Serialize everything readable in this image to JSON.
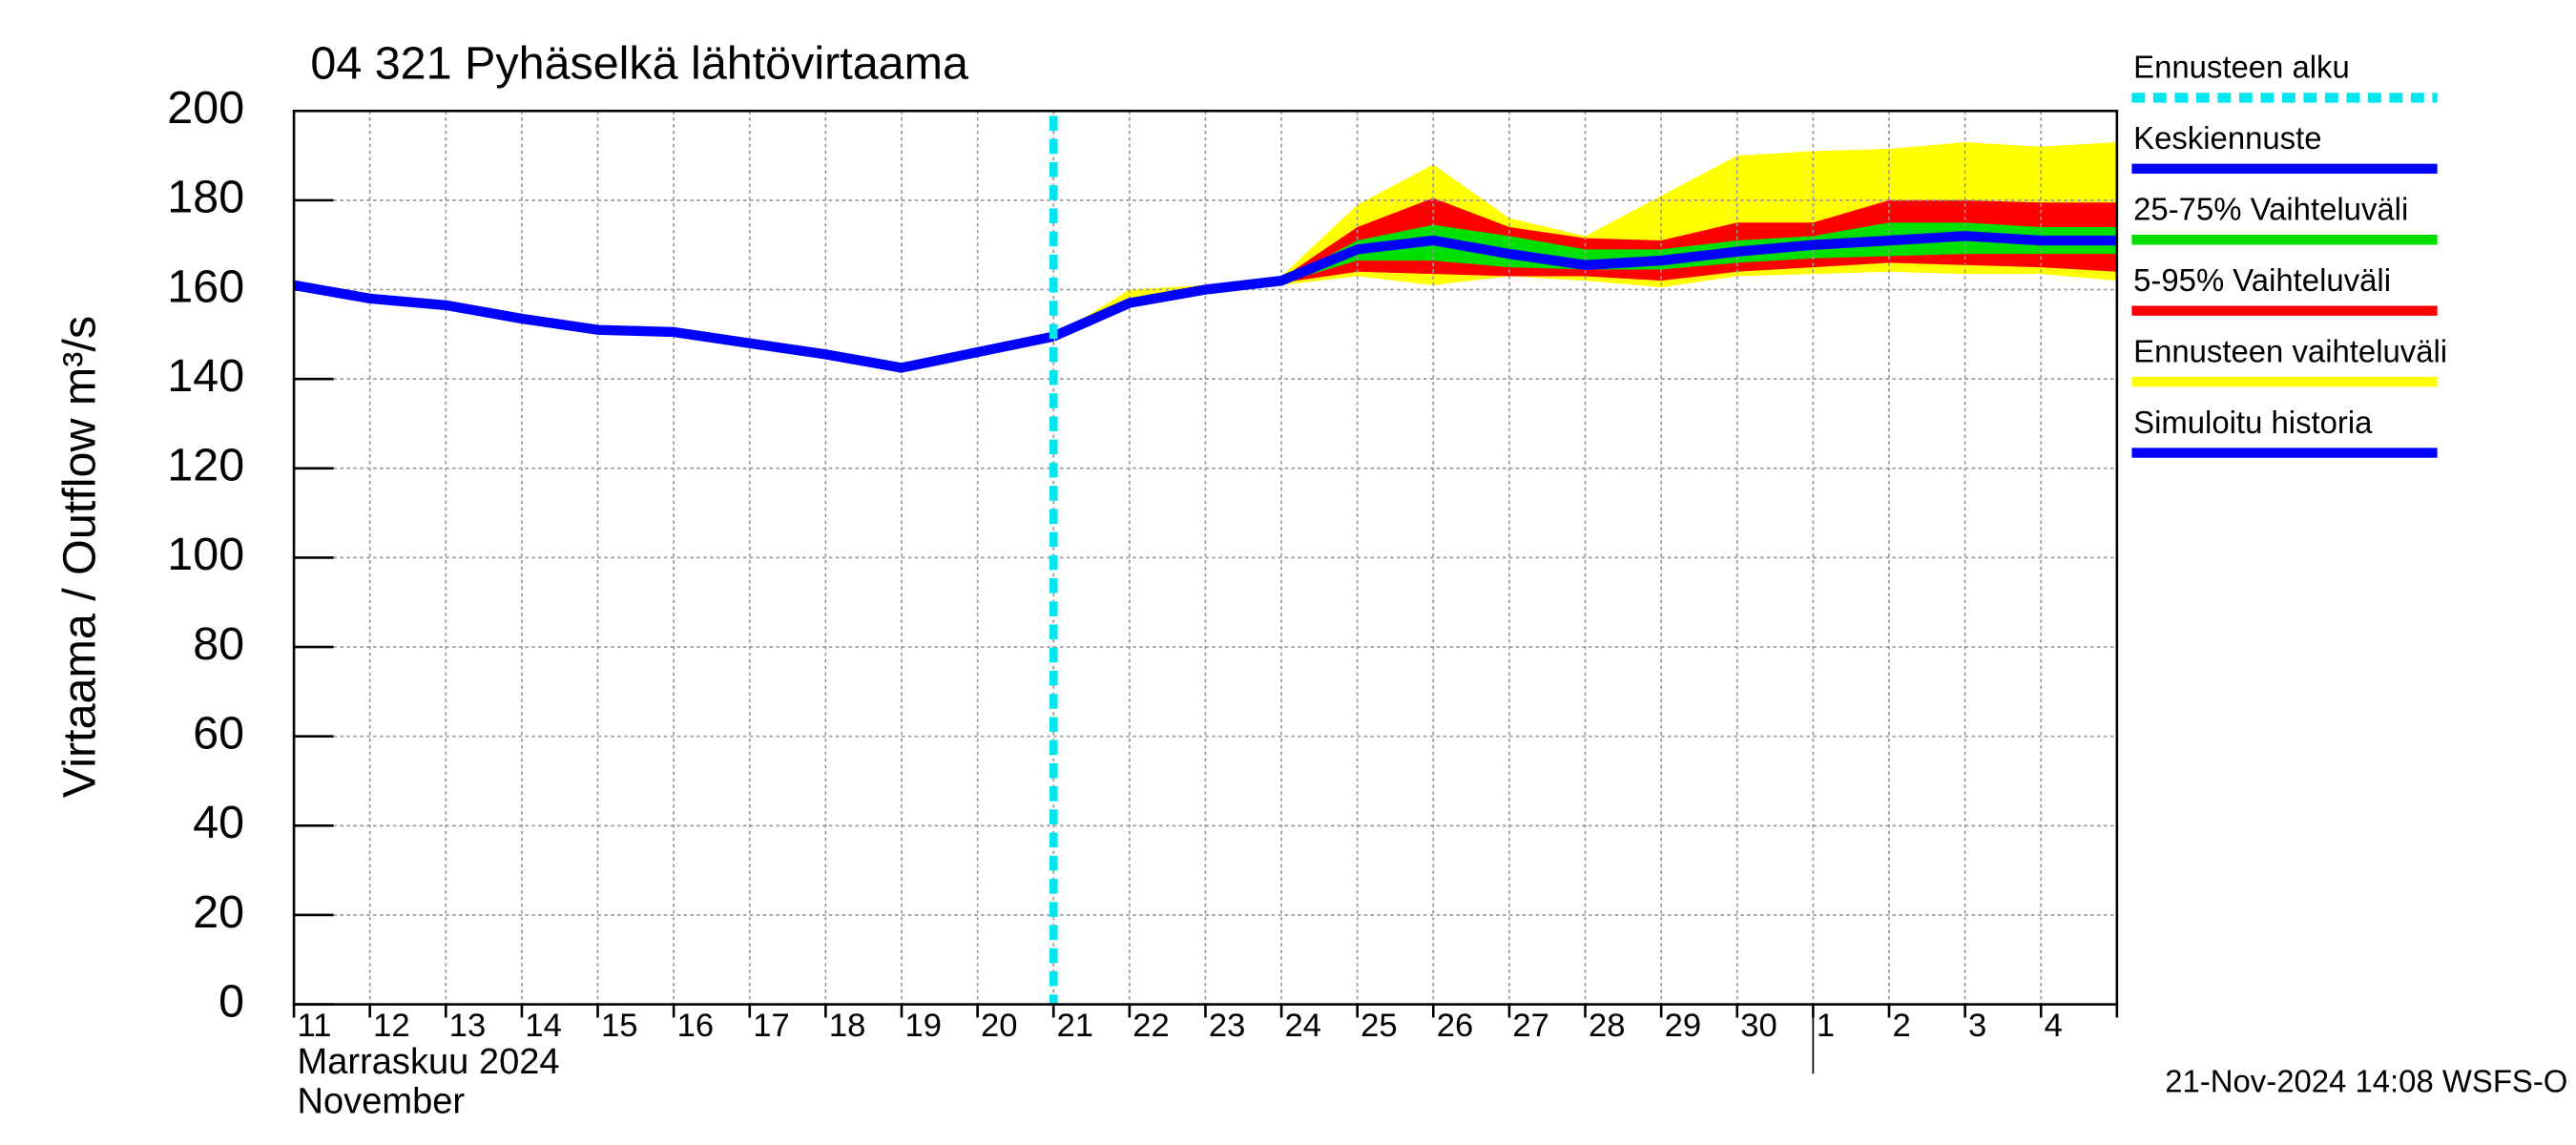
{
  "chart_data": {
    "type": "line",
    "title": "04 321 Pyhäselkä lähtövirtaama",
    "ylabel": "Virtaama / Outflow   m³/s",
    "month_labels": [
      "Marraskuu 2024",
      "November"
    ],
    "footer": "21-Nov-2024 14:08 WSFS-O",
    "categories": [
      "11",
      "12",
      "13",
      "14",
      "15",
      "16",
      "17",
      "18",
      "19",
      "20",
      "21",
      "22",
      "23",
      "24",
      "25",
      "26",
      "27",
      "28",
      "29",
      "30",
      "1",
      "2",
      "3",
      "4",
      null
    ],
    "month_break": 20,
    "forecast_start": {
      "name": "Ennusteen alku",
      "color": "#00e5ee",
      "x": 10
    },
    "series": [
      {
        "name": "Keskiennuste",
        "color": "#0000ff",
        "kind": "line",
        "values": [
          null,
          null,
          null,
          null,
          null,
          null,
          null,
          null,
          null,
          null,
          149.5,
          157,
          160,
          162,
          169,
          171,
          168,
          165.5,
          166.5,
          168.5,
          170,
          171,
          172,
          171,
          171
        ]
      },
      {
        "name": "25-75% Vaihteluväli",
        "color": "#00e000",
        "kind": "band",
        "values": [
          null,
          null,
          null,
          null,
          null,
          null,
          null,
          null,
          null,
          null,
          null,
          null,
          null,
          162,
          171,
          174.5,
          172,
          169,
          169,
          171,
          172,
          175,
          175,
          174,
          174
        ],
        "lower": [
          null,
          null,
          null,
          null,
          null,
          null,
          null,
          null,
          null,
          null,
          null,
          null,
          null,
          161.5,
          166.5,
          166.5,
          165,
          164.5,
          164.5,
          166,
          167,
          167.5,
          168,
          168,
          168
        ]
      },
      {
        "name": "5-95% Vaihteluväli",
        "color": "#ff0000",
        "kind": "band",
        "values": [
          null,
          null,
          null,
          null,
          null,
          null,
          null,
          null,
          null,
          null,
          null,
          null,
          null,
          162.5,
          174,
          180.5,
          174,
          171.5,
          171,
          175,
          175,
          180,
          180,
          179.5,
          179.5
        ],
        "lower": [
          null,
          null,
          null,
          null,
          null,
          null,
          null,
          null,
          null,
          null,
          null,
          null,
          null,
          161.5,
          164,
          163.5,
          163,
          163,
          162,
          164,
          165,
          166,
          165.5,
          165,
          164
        ]
      },
      {
        "name": "Ennusteen vaihteluväli",
        "color": "#ffff00",
        "kind": "band",
        "values": [
          null,
          null,
          null,
          null,
          null,
          null,
          null,
          null,
          null,
          null,
          149.5,
          160,
          161,
          163,
          179,
          188,
          176,
          172,
          181,
          190,
          191,
          191.5,
          193,
          192,
          193
        ],
        "lower": [
          null,
          null,
          null,
          null,
          null,
          null,
          null,
          null,
          null,
          null,
          149.5,
          156,
          160,
          161,
          163,
          161,
          163,
          162,
          160.5,
          163,
          163.5,
          164,
          163.5,
          163.5,
          162
        ]
      },
      {
        "name": "Simuloitu historia",
        "color": "#0000ff",
        "kind": "line",
        "values": [
          161,
          158,
          156.5,
          153.5,
          151,
          150.5,
          148,
          145.5,
          142.5,
          146,
          149.5,
          null,
          null,
          null,
          null,
          null,
          null,
          null,
          null,
          null,
          null,
          null,
          null,
          null,
          null
        ]
      }
    ],
    "ylim": [
      0,
      200
    ],
    "yticks": [
      0,
      20,
      40,
      60,
      80,
      100,
      120,
      140,
      160,
      180,
      200
    ],
    "grid": true
  }
}
